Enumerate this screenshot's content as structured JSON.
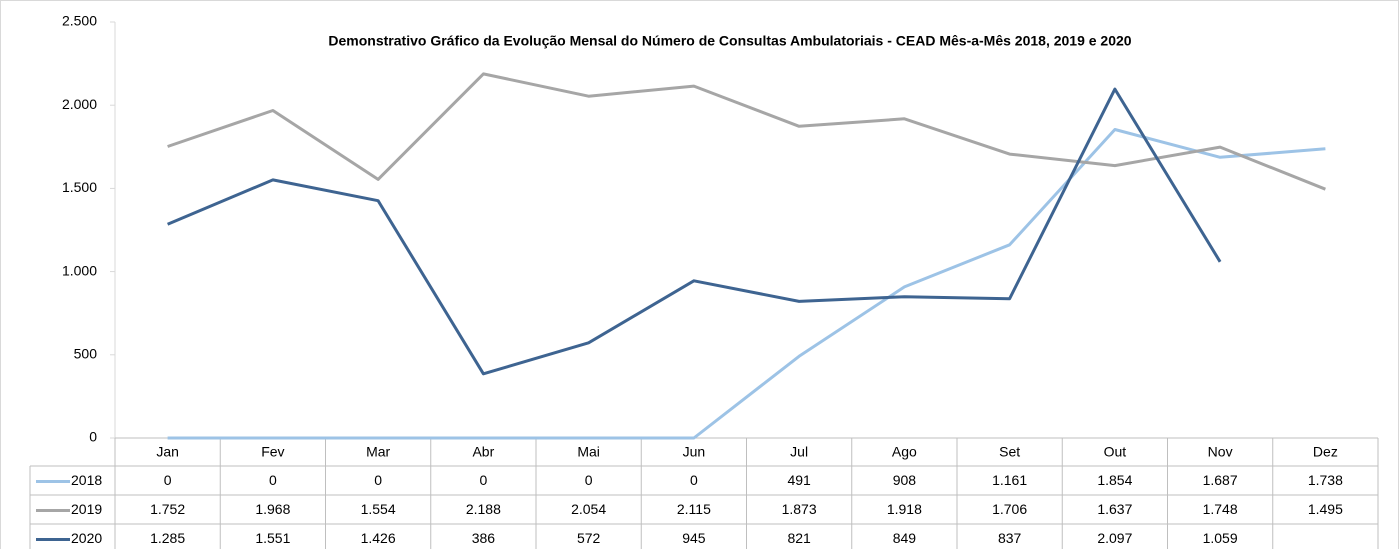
{
  "chart_data": {
    "type": "line",
    "title": "Demonstrativo Gráfico da Evolução Mensal do Número de Consultas Ambulatoriais - CEAD Mês-a-Mês 2018, 2019 e 2020",
    "categories": [
      "Jan",
      "Fev",
      "Mar",
      "Abr",
      "Mai",
      "Jun",
      "Jul",
      "Ago",
      "Set",
      "Out",
      "Nov",
      "Dez"
    ],
    "series": [
      {
        "name": "2018",
        "color": "#9dc3e6",
        "values": [
          0,
          0,
          0,
          0,
          0,
          0,
          491,
          908,
          1161,
          1854,
          1687,
          1738
        ],
        "value_labels": [
          "0",
          "0",
          "0",
          "0",
          "0",
          "0",
          "491",
          "908",
          "1.161",
          "1.854",
          "1.687",
          "1.738"
        ]
      },
      {
        "name": "2019",
        "color": "#a6a6a6",
        "values": [
          1752,
          1968,
          1554,
          2188,
          2054,
          2115,
          1873,
          1918,
          1706,
          1637,
          1748,
          1495
        ],
        "value_labels": [
          "1.752",
          "1.968",
          "1.554",
          "2.188",
          "2.054",
          "2.115",
          "1.873",
          "1.918",
          "1.706",
          "1.637",
          "1.748",
          "1.495"
        ]
      },
      {
        "name": "2020",
        "color": "#3e6491",
        "values": [
          1285,
          1551,
          1426,
          386,
          572,
          945,
          821,
          849,
          837,
          2097,
          1059,
          null
        ],
        "value_labels": [
          "1.285",
          "1.551",
          "1.426",
          "386",
          "572",
          "945",
          "821",
          "849",
          "837",
          "2.097",
          "1.059",
          null
        ]
      }
    ],
    "ylim": [
      0,
      2500
    ],
    "yticks": [
      0,
      500,
      {
        "value": 1000,
        "label": "1.000"
      },
      {
        "value": 1500,
        "label": "1.500"
      },
      {
        "value": 2000,
        "label": "2.000"
      },
      {
        "value": 2500,
        "label": "2.500"
      }
    ],
    "grid": false
  }
}
